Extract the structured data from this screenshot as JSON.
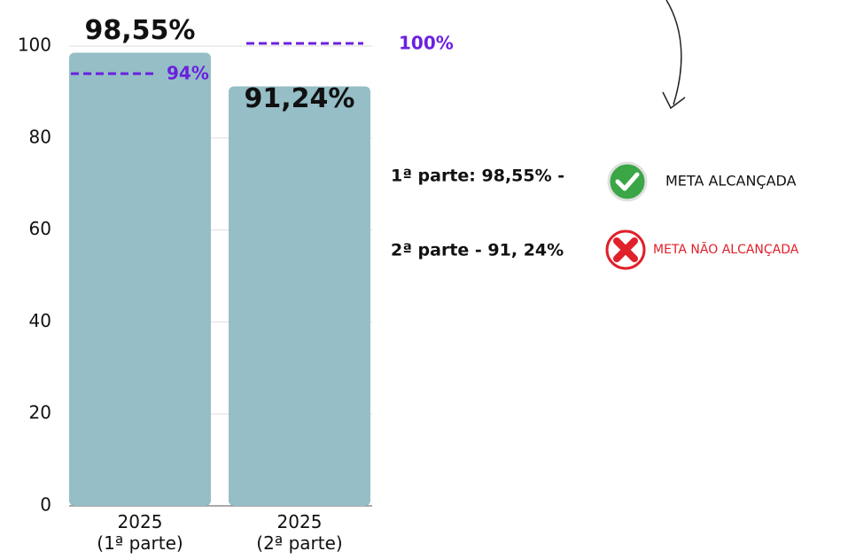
{
  "chart_data": {
    "type": "bar",
    "categories": [
      "2025\n(1ª parte)",
      "2025\n(2ª parte)"
    ],
    "values": [
      98.55,
      91.24
    ],
    "value_labels": [
      "98,55%",
      "91,24%"
    ],
    "color": "#95bec6",
    "ylim": [
      0,
      100
    ],
    "yticks": [
      0,
      20,
      40,
      60,
      80,
      100
    ],
    "grid": true,
    "targets": [
      {
        "value": 94,
        "label": "94%"
      },
      {
        "value": 100,
        "label": "100%"
      }
    ],
    "target_color": "#6b21e0",
    "notes": [
      {
        "text": "1ª parte: 98,55% -",
        "status": "META ALCANÇADA"
      },
      {
        "text": "2ª parte - 91, 24%",
        "status": "META NÃO ALCANÇADA"
      }
    ]
  }
}
